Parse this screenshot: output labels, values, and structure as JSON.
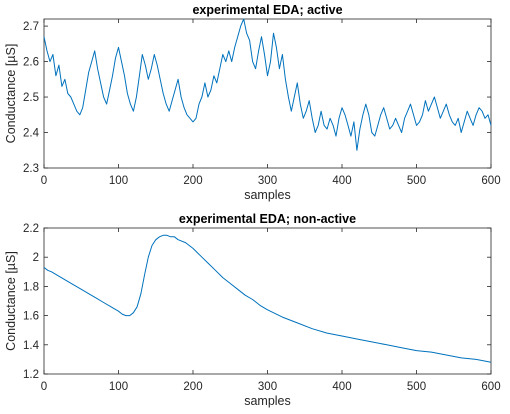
{
  "chart_data": [
    {
      "type": "line",
      "title": "experimental EDA; active",
      "xlabel": "samples",
      "ylabel": "Conductance [µS]",
      "xlim": [
        0,
        600
      ],
      "ylim": [
        2.3,
        2.72
      ],
      "xticks": [
        0,
        100,
        200,
        300,
        400,
        500,
        600
      ],
      "xtick_labels": [
        "0",
        "100",
        "200",
        "300",
        "400",
        "500",
        "600"
      ],
      "yticks": [
        2.3,
        2.4,
        2.5,
        2.6,
        2.7
      ],
      "ytick_labels": [
        "2.3",
        "2.4",
        "2.5",
        "2.6",
        "2.7"
      ],
      "grid": false,
      "series_color": "#0072BD",
      "series": [
        {
          "x": [
            0,
            4,
            8,
            12,
            16,
            20,
            24,
            28,
            32,
            36,
            40,
            44,
            48,
            52,
            56,
            60,
            64,
            68,
            72,
            76,
            80,
            84,
            88,
            92,
            96,
            100,
            104,
            108,
            112,
            116,
            120,
            124,
            128,
            132,
            136,
            140,
            144,
            148,
            152,
            156,
            160,
            164,
            168,
            172,
            176,
            180,
            184,
            188,
            192,
            196,
            200,
            204,
            208,
            212,
            216,
            220,
            224,
            228,
            232,
            236,
            240,
            244,
            248,
            252,
            256,
            260,
            264,
            268,
            272,
            276,
            280,
            284,
            288,
            292,
            296,
            300,
            304,
            308,
            312,
            316,
            320,
            324,
            328,
            332,
            336,
            340,
            344,
            348,
            352,
            356,
            360,
            364,
            368,
            372,
            376,
            380,
            384,
            388,
            392,
            396,
            400,
            404,
            408,
            412,
            416,
            420,
            424,
            428,
            432,
            436,
            440,
            444,
            448,
            452,
            456,
            460,
            464,
            468,
            472,
            476,
            480,
            484,
            488,
            492,
            496,
            500,
            504,
            508,
            512,
            516,
            520,
            524,
            528,
            532,
            536,
            540,
            544,
            548,
            552,
            556,
            560,
            564,
            568,
            572,
            576,
            580,
            584,
            588,
            592,
            596,
            600
          ],
          "y": [
            2.67,
            2.63,
            2.6,
            2.62,
            2.56,
            2.59,
            2.53,
            2.55,
            2.51,
            2.5,
            2.48,
            2.46,
            2.45,
            2.47,
            2.52,
            2.57,
            2.6,
            2.63,
            2.58,
            2.54,
            2.5,
            2.48,
            2.52,
            2.56,
            2.61,
            2.64,
            2.6,
            2.56,
            2.51,
            2.48,
            2.46,
            2.5,
            2.56,
            2.62,
            2.59,
            2.55,
            2.58,
            2.62,
            2.59,
            2.55,
            2.51,
            2.48,
            2.46,
            2.49,
            2.52,
            2.55,
            2.5,
            2.47,
            2.45,
            2.44,
            2.43,
            2.44,
            2.48,
            2.5,
            2.54,
            2.5,
            2.52,
            2.56,
            2.54,
            2.58,
            2.62,
            2.6,
            2.63,
            2.6,
            2.64,
            2.67,
            2.7,
            2.72,
            2.68,
            2.66,
            2.6,
            2.58,
            2.63,
            2.67,
            2.62,
            2.56,
            2.6,
            2.68,
            2.64,
            2.58,
            2.62,
            2.55,
            2.5,
            2.46,
            2.5,
            2.54,
            2.48,
            2.44,
            2.46,
            2.49,
            2.44,
            2.4,
            2.42,
            2.46,
            2.42,
            2.41,
            2.44,
            2.42,
            2.39,
            2.44,
            2.47,
            2.45,
            2.42,
            2.39,
            2.43,
            2.35,
            2.41,
            2.45,
            2.48,
            2.45,
            2.4,
            2.39,
            2.42,
            2.45,
            2.47,
            2.44,
            2.41,
            2.42,
            2.44,
            2.42,
            2.4,
            2.44,
            2.46,
            2.48,
            2.45,
            2.42,
            2.43,
            2.45,
            2.49,
            2.46,
            2.48,
            2.5,
            2.47,
            2.44,
            2.46,
            2.48,
            2.45,
            2.43,
            2.42,
            2.44,
            2.4,
            2.43,
            2.46,
            2.44,
            2.42,
            2.45,
            2.47,
            2.46,
            2.44,
            2.45,
            2.42
          ]
        }
      ]
    },
    {
      "type": "line",
      "title": "experimental EDA; non-active",
      "xlabel": "samples",
      "ylabel": "Conductance [µS]",
      "xlim": [
        0,
        600
      ],
      "ylim": [
        1.2,
        2.2
      ],
      "xticks": [
        0,
        100,
        200,
        300,
        400,
        500,
        600
      ],
      "xtick_labels": [
        "0",
        "100",
        "200",
        "300",
        "400",
        "500",
        "600"
      ],
      "yticks": [
        1.2,
        1.4,
        1.6,
        1.8,
        2,
        2.2
      ],
      "ytick_labels": [
        "1.2",
        "1.4",
        "1.6",
        "1.8",
        "2",
        "2.2"
      ],
      "grid": false,
      "series_color": "#0072BD",
      "series": [
        {
          "x": [
            0,
            5,
            10,
            20,
            30,
            40,
            50,
            60,
            70,
            80,
            90,
            100,
            105,
            110,
            115,
            120,
            125,
            130,
            135,
            140,
            145,
            150,
            155,
            160,
            165,
            170,
            175,
            180,
            190,
            200,
            210,
            220,
            230,
            240,
            250,
            260,
            270,
            280,
            290,
            300,
            320,
            340,
            360,
            380,
            400,
            420,
            440,
            460,
            480,
            500,
            520,
            540,
            560,
            580,
            600
          ],
          "y": [
            1.93,
            1.91,
            1.9,
            1.87,
            1.84,
            1.81,
            1.78,
            1.75,
            1.72,
            1.69,
            1.66,
            1.63,
            1.61,
            1.6,
            1.6,
            1.62,
            1.66,
            1.75,
            1.88,
            2.0,
            2.08,
            2.12,
            2.14,
            2.15,
            2.15,
            2.14,
            2.14,
            2.12,
            2.1,
            2.06,
            2.01,
            1.96,
            1.91,
            1.86,
            1.82,
            1.78,
            1.74,
            1.71,
            1.67,
            1.64,
            1.59,
            1.55,
            1.51,
            1.48,
            1.46,
            1.44,
            1.42,
            1.4,
            1.38,
            1.36,
            1.35,
            1.33,
            1.31,
            1.3,
            1.28
          ]
        }
      ]
    }
  ]
}
